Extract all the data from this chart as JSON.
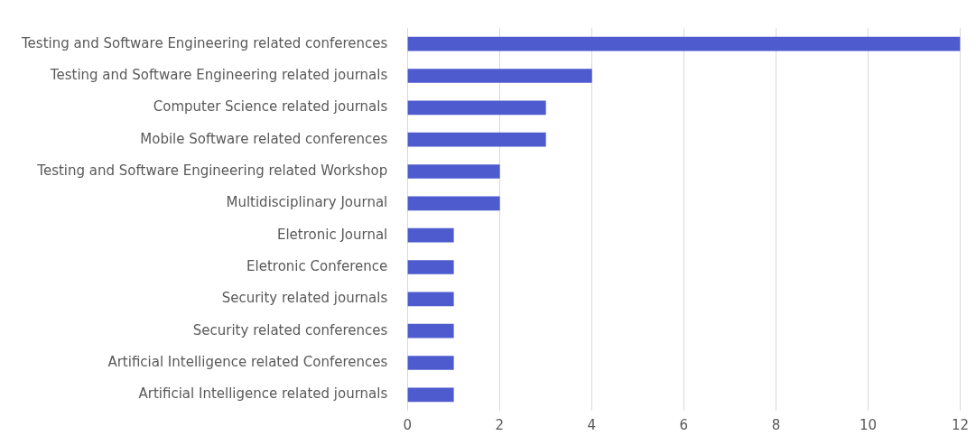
{
  "chart_data": {
    "type": "bar",
    "orientation": "horizontal",
    "categories": [
      "Testing and Software Engineering related conferences",
      "Testing and Software Engineering related journals",
      "Computer Science related journals",
      "Mobile Software related conferences",
      "Testing and Software Engineering related Workshop",
      "Multidisciplinary Journal",
      "Eletronic Journal",
      "Eletronic Conference",
      "Security related journals",
      "Security related conferences",
      "Artificial Intelligence related Conferences",
      "Artificial Intelligence related journals"
    ],
    "values": [
      12,
      4,
      3,
      3,
      2,
      2,
      1,
      1,
      1,
      1,
      1,
      1
    ],
    "color": "#4e5bcf",
    "xlim": [
      0,
      12
    ],
    "xticks": [
      0,
      2,
      4,
      6,
      8,
      10,
      12
    ],
    "grid": "x",
    "legend": false
  }
}
